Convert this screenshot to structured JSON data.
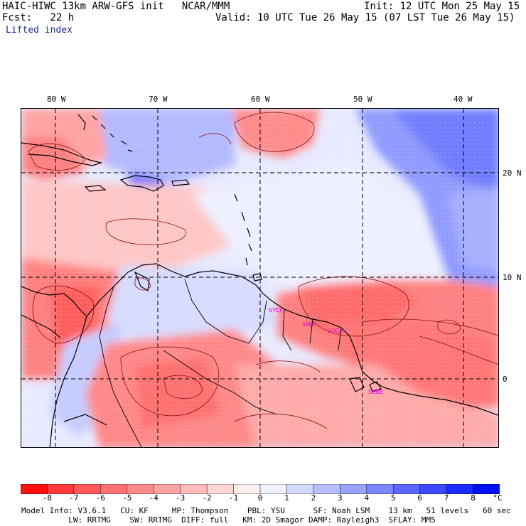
{
  "header": {
    "title_left": "HAIC-HIWC 13km ARW-GFS init   NCAR/MMM",
    "init": "Init: 12 UTC Mon 25 May 15",
    "fcst": "Fcst:   22 h",
    "valid": "Valid: 10 UTC Tue 26 May 15 (07 LST Tue 26 May 15)",
    "field": "Lifted index"
  },
  "map": {
    "lon_labels": [
      "80 W",
      "70 W",
      "60 W",
      "50 W",
      "40 W"
    ],
    "lat_labels": [
      "20 N",
      "10 N",
      "0"
    ],
    "stations": [
      "SYCJ",
      "SMJP",
      "SOCA",
      "SBBE"
    ]
  },
  "colorbar": {
    "ticks": [
      "-8",
      "-7",
      "-6",
      "-5",
      "-4",
      "-3",
      "-2",
      "-1",
      "0",
      "1",
      "2",
      "3",
      "4",
      "5",
      "6",
      "7",
      "8"
    ],
    "unit": "°C",
    "colors": [
      "#ff1010",
      "#ff3a3a",
      "#ff5858",
      "#ff7070",
      "#ff8a8a",
      "#ffa2a2",
      "#ffbcbc",
      "#ffd6d6",
      "#ffeeee",
      "#f0f0ff",
      "#d4d8ff",
      "#b8beff",
      "#9aa2ff",
      "#7c86ff",
      "#5c66ff",
      "#3c48ff",
      "#1c2cff",
      "#0010f0"
    ]
  },
  "footer": {
    "line1": "Model Info: V3.6.1   CU: KF     MP: Thompson    PBL: YSU      SF: Noah LSM    13 km   51 levels   60 sec",
    "line2": "          LW: RRTMG    SW: RRTMG  DIFF: full   KM: 2D Smagor DAMP: Rayleigh3  SFLAY: MM5"
  }
}
